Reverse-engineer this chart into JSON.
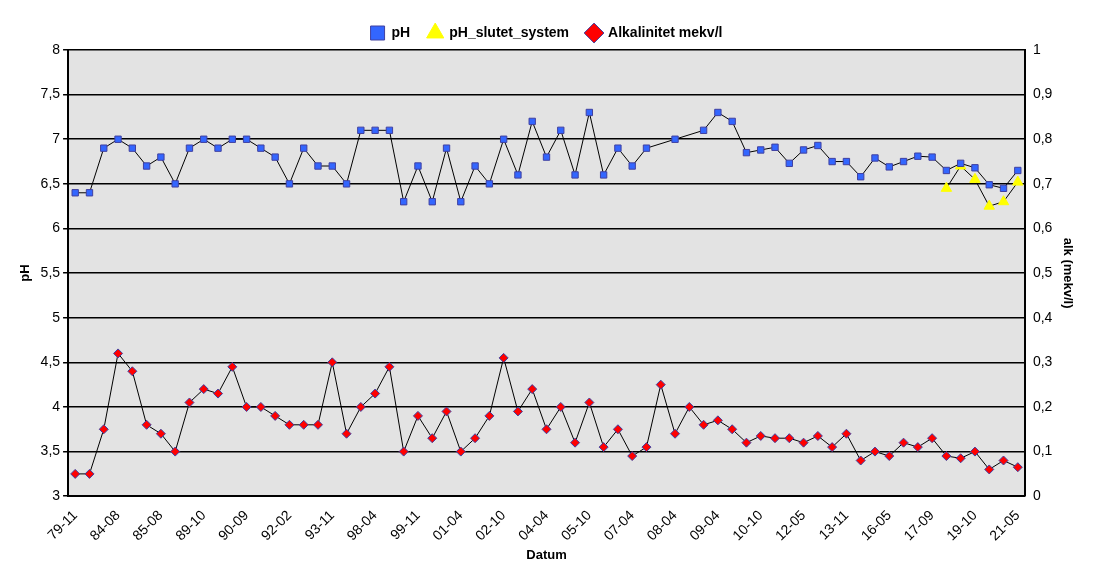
{
  "chart_data": {
    "type": "line",
    "xlabel": "Datum",
    "ylabel": "pH",
    "y2label": "alk (mekv/l)",
    "categories": [
      "79-11",
      null,
      null,
      "84-08",
      null,
      null,
      "85-08",
      null,
      null,
      "89-10",
      null,
      null,
      "90-09",
      null,
      null,
      "92-02",
      null,
      null,
      "93-11",
      null,
      null,
      "98-04",
      null,
      null,
      "99-11",
      null,
      null,
      "01-04",
      null,
      null,
      "02-10",
      null,
      null,
      "04-04",
      null,
      null,
      "05-10",
      null,
      null,
      "07-04",
      null,
      null,
      "08-04",
      null,
      null,
      "09-04",
      null,
      null,
      "10-10",
      null,
      null,
      "12-05",
      null,
      null,
      "13-11",
      null,
      null,
      "16-05",
      null,
      null,
      "17-09",
      null,
      null,
      "19-10",
      null,
      null,
      "21-05"
    ],
    "series": [
      {
        "name": "pH",
        "color": "#3366ff",
        "marker": "square",
        "values": [
          6.4,
          6.4,
          6.9,
          7.0,
          6.9,
          6.7,
          6.8,
          6.5,
          6.9,
          7.0,
          6.9,
          7.0,
          7.0,
          6.9,
          6.8,
          6.5,
          6.9,
          6.7,
          6.7,
          6.5,
          7.1,
          7.1,
          7.1,
          6.3,
          6.7,
          6.3,
          6.9,
          6.3,
          6.7,
          6.5,
          7.0,
          6.6,
          7.2,
          6.8,
          7.1,
          6.6,
          7.3,
          6.6,
          6.9,
          6.7,
          6.9,
          null,
          7.0,
          null,
          7.1,
          7.3,
          7.2,
          6.85,
          6.88,
          6.91,
          6.73,
          6.88,
          6.93,
          6.75,
          6.75,
          6.58,
          6.79,
          6.69,
          6.75,
          6.81,
          6.8,
          6.65,
          6.73,
          6.68,
          6.49,
          6.45,
          6.65
        ]
      },
      {
        "name": "pH_slutet_system",
        "color": "#ffff00",
        "marker": "triangle",
        "values": [
          null,
          null,
          null,
          null,
          null,
          null,
          null,
          null,
          null,
          null,
          null,
          null,
          null,
          null,
          null,
          null,
          null,
          null,
          null,
          null,
          null,
          null,
          null,
          null,
          null,
          null,
          null,
          null,
          null,
          null,
          null,
          null,
          null,
          null,
          null,
          null,
          null,
          null,
          null,
          null,
          null,
          null,
          null,
          null,
          null,
          null,
          null,
          null,
          null,
          null,
          null,
          null,
          null,
          null,
          null,
          null,
          null,
          null,
          null,
          null,
          null,
          6.45,
          6.7,
          6.55,
          6.25,
          6.3,
          6.52
        ]
      },
      {
        "name": "Alkalinitet mekv/l",
        "color": "#ff0000",
        "marker": "diamond",
        "axis": "y2",
        "values": [
          0.05,
          0.05,
          0.15,
          0.32,
          0.28,
          0.16,
          0.14,
          0.1,
          0.21,
          0.24,
          0.23,
          0.29,
          0.2,
          0.2,
          0.18,
          0.16,
          0.16,
          0.16,
          0.3,
          0.14,
          0.2,
          0.23,
          0.29,
          0.1,
          0.18,
          0.13,
          0.19,
          0.1,
          0.13,
          0.18,
          0.31,
          0.19,
          0.24,
          0.15,
          0.2,
          0.12,
          0.21,
          0.11,
          0.15,
          0.09,
          0.11,
          0.25,
          0.14,
          0.2,
          0.16,
          0.17,
          0.15,
          0.12,
          0.135,
          0.13,
          0.13,
          0.12,
          0.135,
          0.11,
          0.14,
          0.08,
          0.1,
          0.09,
          0.12,
          0.11,
          0.13,
          0.09,
          0.085,
          0.1,
          0.06,
          0.08,
          0.065
        ]
      }
    ],
    "ylim": [
      3,
      8
    ],
    "yticks": [
      3,
      {
        "value": 3.5,
        "label": "3,5"
      },
      4,
      {
        "value": 4.5,
        "label": "4,5"
      },
      5,
      {
        "value": 5.5,
        "label": "5,5"
      },
      6,
      {
        "value": 6.5,
        "label": "6,5"
      },
      7,
      {
        "value": 7.5,
        "label": "7,5"
      },
      8
    ],
    "y2lim": [
      0,
      1
    ],
    "y2ticks": [
      0,
      {
        "value": 0.1,
        "label": "0,1"
      },
      {
        "value": 0.2,
        "label": "0,2"
      },
      {
        "value": 0.3,
        "label": "0,3"
      },
      {
        "value": 0.4,
        "label": "0,4"
      },
      {
        "value": 0.5,
        "label": "0,5"
      },
      {
        "value": 0.6,
        "label": "0,6"
      },
      {
        "value": 0.7,
        "label": "0,7"
      },
      {
        "value": 0.8,
        "label": "0,8"
      },
      {
        "value": 0.9,
        "label": "0,9"
      },
      1
    ],
    "grid": "y",
    "legend": "top",
    "line_style": "solid"
  }
}
